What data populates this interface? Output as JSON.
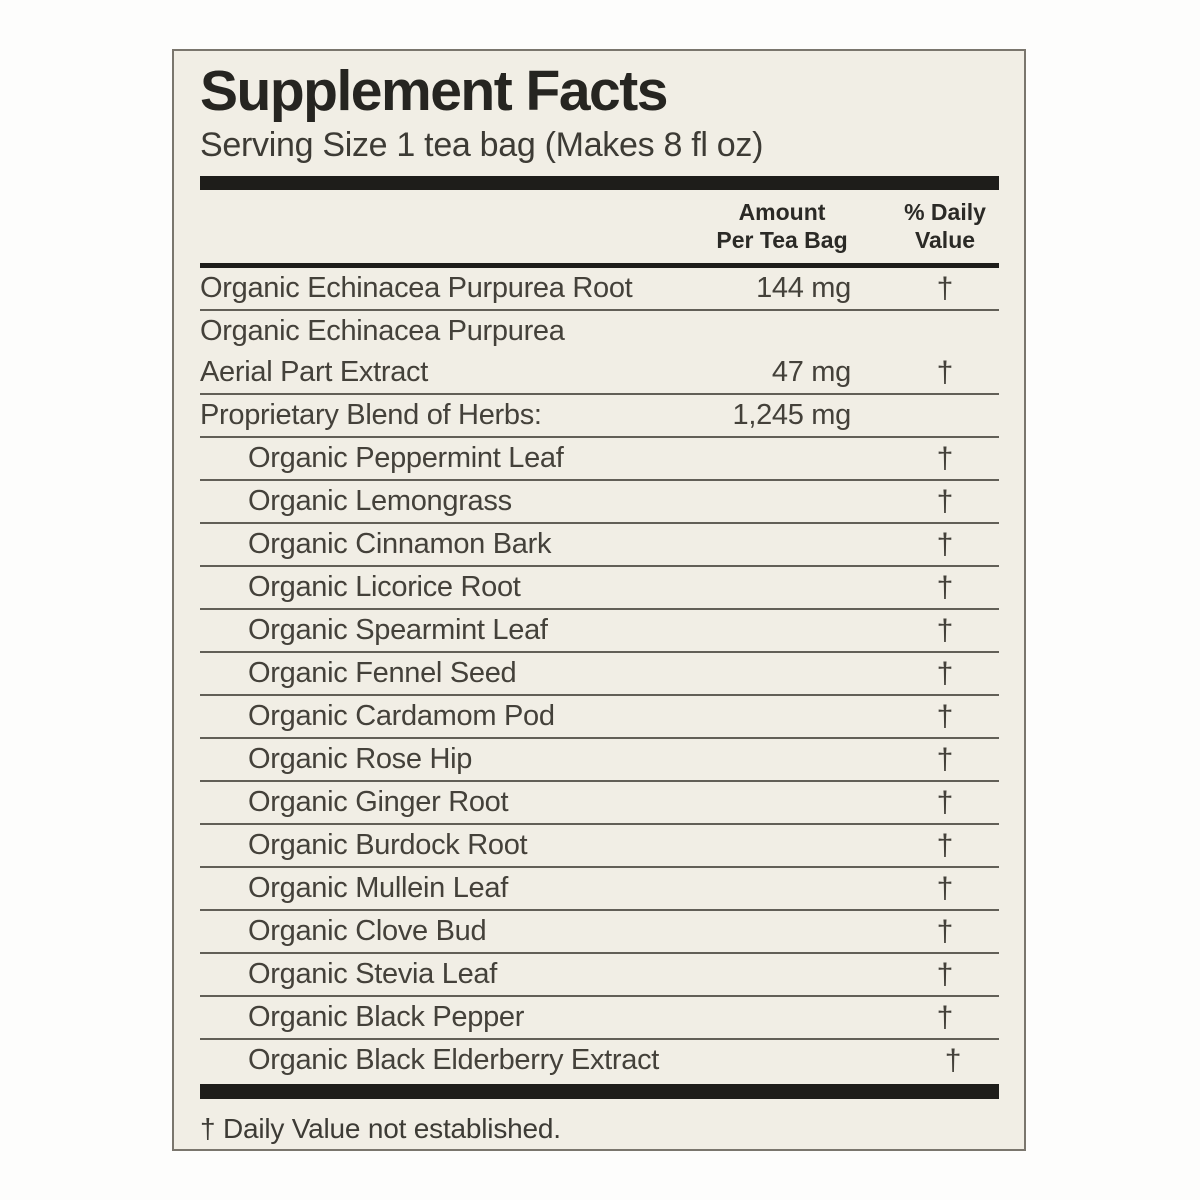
{
  "label": {
    "title": "Supplement Facts",
    "serving_size": "Serving Size 1 tea bag (Makes 8 fl oz)",
    "columns": {
      "amount_header": "Amount\nPer Tea Bag",
      "daily_value_header": "% Daily\nValue"
    },
    "rows": [
      {
        "name": "Organic Echinacea Purpurea Root",
        "amount": "144 mg",
        "dv": "†",
        "indent": false
      },
      {
        "name": "Organic Echinacea Purpurea",
        "name2": "Aerial Part Extract",
        "amount": "47 mg",
        "dv": "†",
        "indent": false
      },
      {
        "name": "Proprietary Blend of Herbs:",
        "amount": "1,245 mg",
        "dv": "",
        "indent": false
      },
      {
        "name": "Organic Peppermint Leaf",
        "amount": "",
        "dv": "†",
        "indent": true
      },
      {
        "name": "Organic Lemongrass",
        "amount": "",
        "dv": "†",
        "indent": true
      },
      {
        "name": "Organic Cinnamon Bark",
        "amount": "",
        "dv": "†",
        "indent": true
      },
      {
        "name": "Organic Licorice Root",
        "amount": "",
        "dv": "†",
        "indent": true
      },
      {
        "name": "Organic Spearmint Leaf",
        "amount": "",
        "dv": "†",
        "indent": true
      },
      {
        "name": "Organic Fennel Seed",
        "amount": "",
        "dv": "†",
        "indent": true
      },
      {
        "name": "Organic Cardamom Pod",
        "amount": "",
        "dv": "†",
        "indent": true
      },
      {
        "name": "Organic Rose Hip",
        "amount": "",
        "dv": "†",
        "indent": true
      },
      {
        "name": "Organic Ginger Root",
        "amount": "",
        "dv": "†",
        "indent": true
      },
      {
        "name": "Organic Burdock Root",
        "amount": "",
        "dv": "†",
        "indent": true
      },
      {
        "name": "Organic Mullein Leaf",
        "amount": "",
        "dv": "†",
        "indent": true
      },
      {
        "name": "Organic Clove Bud",
        "amount": "",
        "dv": "†",
        "indent": true
      },
      {
        "name": "Organic Stevia Leaf",
        "amount": "",
        "dv": "†",
        "indent": true
      },
      {
        "name": "Organic Black Pepper",
        "amount": "",
        "dv": "†",
        "indent": true
      },
      {
        "name": "Organic Black Elderberry Extract",
        "amount": "",
        "dv": "†",
        "indent": true
      }
    ],
    "footnote": "† Daily Value not established."
  },
  "colors": {
    "page_background": "#fdfdfc",
    "label_background": "#f1eee5",
    "label_border": "#7a766d",
    "rule_line": "#625f57",
    "heavy_bar": "#1e1d1a",
    "title_ink": "#262521",
    "body_ink": "#44413a"
  }
}
